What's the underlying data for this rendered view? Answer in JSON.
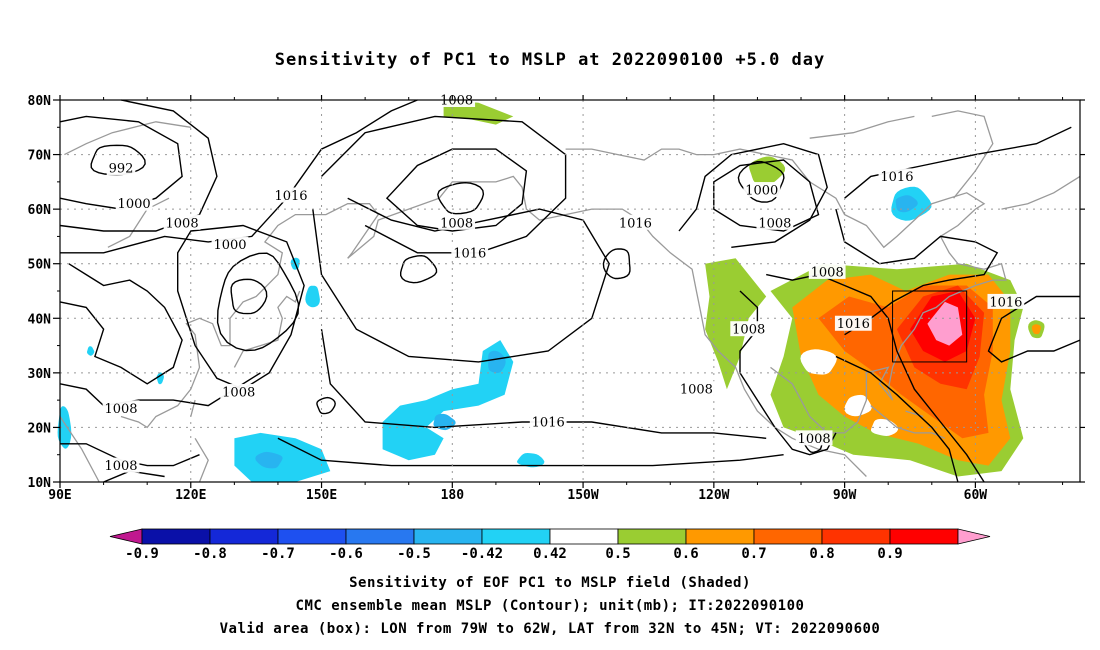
{
  "title": "Sensitivity of PC1 to MSLP at 2022090100 +5.0 day",
  "lat_ticks": [
    "80N",
    "70N",
    "60N",
    "50N",
    "40N",
    "30N",
    "20N",
    "10N"
  ],
  "lon_ticks": [
    "90E",
    "120E",
    "150E",
    "180",
    "150W",
    "120W",
    "90W",
    "60W"
  ],
  "contour_labels": [
    {
      "text": "992",
      "lon": 104,
      "lat": 67.5
    },
    {
      "text": "1000",
      "lon": 107,
      "lat": 61
    },
    {
      "text": "1008",
      "lon": 118,
      "lat": 57.5
    },
    {
      "text": "1000",
      "lon": 129,
      "lat": 53.5
    },
    {
      "text": "1016",
      "lon": 143,
      "lat": 62.5
    },
    {
      "text": "1008",
      "lon": 181,
      "lat": 80
    },
    {
      "text": "1008",
      "lon": 181,
      "lat": 57.5
    },
    {
      "text": "1016",
      "lon": 184,
      "lat": 52
    },
    {
      "text": "1016",
      "lon": 222,
      "lat": 57.5
    },
    {
      "text": "1000",
      "lon": 251,
      "lat": 63.5
    },
    {
      "text": "1008",
      "lon": 254,
      "lat": 57.5
    },
    {
      "text": "1016",
      "lon": 282,
      "lat": 66
    },
    {
      "text": "1008",
      "lon": 266,
      "lat": 48.5
    },
    {
      "text": "1008",
      "lon": 248,
      "lat": 38
    },
    {
      "text": "1016",
      "lon": 272,
      "lat": 39
    },
    {
      "text": "1016",
      "lon": 307,
      "lat": 43
    },
    {
      "text": "1008",
      "lon": 236,
      "lat": 27
    },
    {
      "text": "1008",
      "lon": 263,
      "lat": 18
    },
    {
      "text": "1008",
      "lon": 131,
      "lat": 26.5
    },
    {
      "text": "1008",
      "lon": 104,
      "lat": 23.5
    },
    {
      "text": "1008",
      "lon": 104,
      "lat": 13
    },
    {
      "text": "1016",
      "lon": 202,
      "lat": 21
    }
  ],
  "colorbar": {
    "labels": [
      "-0.9",
      "-0.8",
      "-0.7",
      "-0.6",
      "-0.5",
      "-0.42",
      "0.42",
      "0.5",
      "0.6",
      "0.7",
      "0.8",
      "0.9"
    ],
    "colors": [
      "#c0188f",
      "#0a10a8",
      "#1428d8",
      "#1e50f0",
      "#2878f0",
      "#28b4f0",
      "#22d2f5",
      "#ffffff",
      "#9acd32",
      "#ff9900",
      "#ff6600",
      "#ff3300",
      "#ff0000",
      "#ff9ecf"
    ]
  },
  "box": {
    "lon_min": 281,
    "lon_max": 298,
    "lat_min": 32,
    "lat_max": 45
  },
  "captions": [
    "Sensitivity of EOF PC1 to MSLP field (Shaded)",
    "CMC ensemble mean MSLP (Contour); unit(mb); IT:2022090100",
    "Valid area (box): LON from 79W to 62W, LAT from 32N to 45N; VT: 2022090600"
  ]
}
